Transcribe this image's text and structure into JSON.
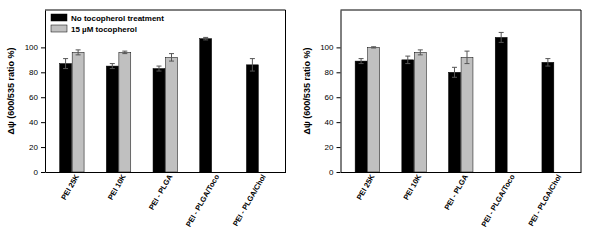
{
  "chart_data": [
    {
      "type": "bar",
      "y_label": "Δψ (600/535 ratio %)",
      "categories": [
        "PEI 25K",
        "PEI 10K",
        "PEI - PLGA",
        "PEI - PLGA/Toco",
        "PEI - PLGA/Chol"
      ],
      "series": [
        {
          "name": "No tocopherol treatment",
          "color": "#000000",
          "values": [
            87,
            85,
            83,
            107,
            86
          ],
          "errors": [
            4,
            2,
            2,
            1,
            5
          ]
        },
        {
          "name": "15 µM tocopherol",
          "color": "#c0c0c0",
          "values": [
            96,
            96,
            92,
            null,
            null
          ],
          "errors": [
            2,
            1,
            3,
            null,
            null
          ]
        }
      ],
      "ylim": [
        0,
        130
      ],
      "yticks": [
        0,
        20,
        40,
        60,
        80,
        100
      ],
      "legend": "top-left"
    },
    {
      "type": "bar",
      "y_label": "Δψ (600/535 ratio %)",
      "categories": [
        "PEI 25K",
        "PEI 10K",
        "PEI - PLGA",
        "PEI - PLGA/Toco",
        "PEI - PLGA/Chol"
      ],
      "series": [
        {
          "color": "#000000",
          "values": [
            89,
            90,
            80,
            108,
            88
          ],
          "errors": [
            2,
            3,
            4,
            4,
            3
          ]
        },
        {
          "color": "#c0c0c0",
          "values": [
            100,
            96,
            92,
            null,
            null
          ],
          "errors": [
            0.5,
            2,
            5,
            null,
            null
          ]
        }
      ],
      "ylim": [
        0,
        130
      ],
      "yticks": [
        0,
        20,
        40,
        60,
        80,
        100
      ]
    }
  ]
}
